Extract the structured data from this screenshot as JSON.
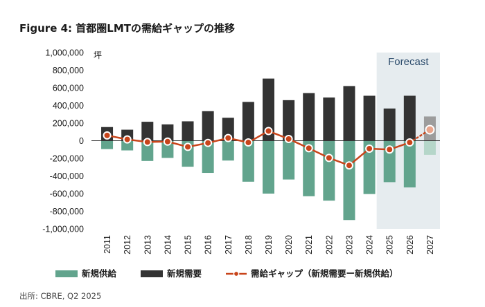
{
  "title": "Figure 4: 首都圏LMTの需給ギャップの推移",
  "source": "出所: CBRE, Q2 2025",
  "forecast_label": "Forecast",
  "colors": {
    "supply": "#62a48d",
    "supply_forecast": "#b5d6c9",
    "demand": "#333333",
    "demand_forecast": "#9c9c9c",
    "gap": "#c8441a",
    "forecast_bg": "#e6ecef",
    "axis": "#333333"
  },
  "chart_data": {
    "type": "bar",
    "categories": [
      "2011",
      "2012",
      "2013",
      "2014",
      "2015",
      "2016",
      "2017",
      "2018",
      "2019",
      "2020",
      "2021",
      "2022",
      "2023",
      "2024",
      "2025",
      "2026",
      "2027"
    ],
    "ylabel": "坪",
    "ylim": [
      -1000000,
      1000000
    ],
    "yticks": [
      1000000,
      800000,
      600000,
      400000,
      200000,
      0,
      -200000,
      -400000,
      -600000,
      -800000,
      -1000000
    ],
    "ytick_labels": [
      "1,000,000",
      "800,000",
      "600,000",
      "400,000",
      "200,000",
      "0",
      "-200,000",
      "-400,000",
      "-600,000",
      "-800,000",
      "-1,000,000"
    ],
    "forecast_start": "2025",
    "series": [
      {
        "name": "新規供給",
        "type": "bar",
        "values": [
          -95000,
          -110000,
          -230000,
          -195000,
          -295000,
          -365000,
          -225000,
          -465000,
          -600000,
          -440000,
          -630000,
          -680000,
          -900000,
          -605000,
          -470000,
          -530000,
          -160000
        ]
      },
      {
        "name": "新規需要",
        "type": "bar",
        "values": [
          155000,
          125000,
          215000,
          185000,
          220000,
          335000,
          260000,
          440000,
          705000,
          460000,
          540000,
          490000,
          620000,
          510000,
          365000,
          510000,
          275000
        ]
      },
      {
        "name": "需給ギャップ（新規需要ー新規供給）",
        "type": "line",
        "values": [
          60000,
          15000,
          -15000,
          -10000,
          -70000,
          -25000,
          30000,
          -20000,
          110000,
          20000,
          -85000,
          -195000,
          -280000,
          -90000,
          -100000,
          -20000,
          125000
        ]
      }
    ]
  }
}
